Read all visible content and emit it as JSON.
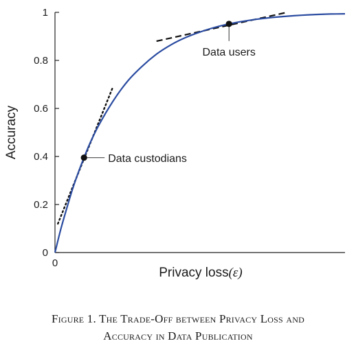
{
  "chart_data": {
    "type": "line",
    "xlabel": "Privacy loss",
    "xlabel_symbol": "(ε)",
    "ylabel": "Accuracy",
    "xlim": [
      0,
      1
    ],
    "ylim": [
      0,
      1
    ],
    "x_ticks": [
      "0"
    ],
    "y_ticks": [
      "0",
      "0.2",
      "0.4",
      "0.6",
      "0.8",
      "1"
    ],
    "grid": false,
    "series": [
      {
        "color": "#2a4ba0",
        "x": [
          0,
          0.02,
          0.04,
          0.06,
          0.08,
          0.1,
          0.12,
          0.15,
          0.2,
          0.25,
          0.3,
          0.35,
          0.4,
          0.45,
          0.5,
          0.55,
          0.6,
          0.65,
          0.7,
          0.75,
          0.8,
          0.85,
          0.9,
          0.95,
          1.0
        ],
        "y": [
          0,
          0.097,
          0.182,
          0.262,
          0.332,
          0.395,
          0.453,
          0.528,
          0.63,
          0.713,
          0.775,
          0.826,
          0.865,
          0.895,
          0.918,
          0.937,
          0.952,
          0.963,
          0.972,
          0.979,
          0.984,
          0.988,
          0.991,
          0.993,
          0.994
        ]
      }
    ],
    "points": [
      {
        "label": "Data custodians",
        "x": 0.1,
        "y": 0.395
      },
      {
        "label": "Data users",
        "x": 0.6,
        "y": 0.952
      }
    ],
    "tangents": [
      {
        "style": "dotted",
        "x": [
          0.01,
          0.2
        ],
        "y": [
          0.12,
          0.69
        ]
      },
      {
        "style": "dashed",
        "x": [
          0.35,
          0.8
        ],
        "y": [
          0.88,
          1.0
        ]
      }
    ]
  },
  "caption": {
    "line1": "Figure 1. The Trade-Off between Privacy Loss and",
    "line2": "Accuracy in Data Publication"
  }
}
